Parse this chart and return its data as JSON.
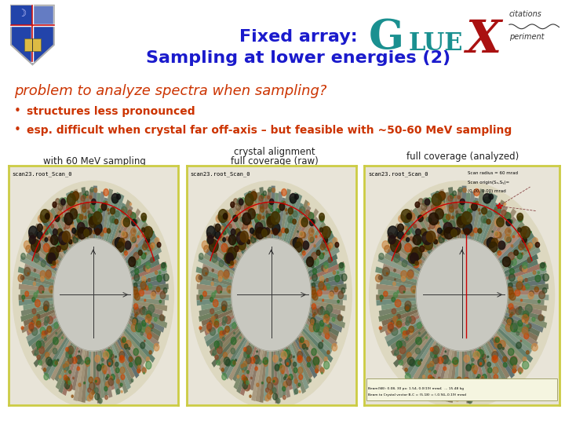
{
  "title_line1": "Fixed array:",
  "title_line2": "Sampling at lower energies (2)",
  "title_color": "#1a1acc",
  "bg_color": "#ffffff",
  "problem_text": "problem to analyze spectra when sampling?",
  "problem_color": "#cc3300",
  "bullet1": "structures less pronounced",
  "bullet2": "esp. difficult when crystal far off-axis – but feasible with ~50-60 MeV sampling",
  "bullet_color": "#cc3300",
  "label_left": "with 60 MeV sampling",
  "label_center_top": "crystal alignment",
  "label_center_bottom": "full coverage (raw)",
  "label_right": "full coverage (analyzed)",
  "label_color": "#222222",
  "image_border_color": "#cccc00",
  "scan_label": "scan23.root_Scan_0",
  "gluex_G_color": "#1a9090",
  "gluex_LUE_color": "#1a9090",
  "gluex_X_color": "#aa1111"
}
